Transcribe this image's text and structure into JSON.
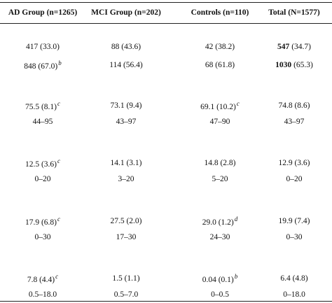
{
  "table": {
    "header": [
      "AD Group (n=1265)",
      "MCI Group (n=202)",
      "Controls (n=110)",
      "Total (N=1577)"
    ],
    "rows": [
      [
        {
          "text": "417 (33.0)"
        },
        {
          "text": "88 (43.6)"
        },
        {
          "text": "42 (38.2)"
        },
        {
          "bold": "547",
          "text": "(34.7)"
        }
      ],
      [
        {
          "text": "848 (67.0)",
          "sup": "b"
        },
        {
          "text": "114 (56.4)"
        },
        {
          "text": "68 (61.8)"
        },
        {
          "bold": "1030",
          "text": "(65.3)"
        }
      ],
      [
        {
          "text": "75.5 (8.1)",
          "sup": "c"
        },
        {
          "text": "73.1 (9.4)"
        },
        {
          "text": "69.1 (10.2)",
          "sup": "c"
        },
        {
          "text": "74.8 (8.6)"
        }
      ],
      [
        {
          "text": "44–95"
        },
        {
          "text": "43–97"
        },
        {
          "text": "47–90"
        },
        {
          "text": "43–97"
        }
      ],
      [
        {
          "text": "12.5 (3.6)",
          "sup": "c"
        },
        {
          "text": "14.1 (3.1)"
        },
        {
          "text": "14.8 (2.8)"
        },
        {
          "text": "12.9 (3.6)"
        }
      ],
      [
        {
          "text": "0–20"
        },
        {
          "text": "3–20"
        },
        {
          "text": "5–20"
        },
        {
          "text": "0–20"
        }
      ],
      [
        {
          "text": "17.9 (6.8)",
          "sup": "c"
        },
        {
          "text": "27.5 (2.0)"
        },
        {
          "text": "29.0 (1.2)",
          "sup": "d"
        },
        {
          "text": "19.9 (7.4)"
        }
      ],
      [
        {
          "text": "0–30"
        },
        {
          "text": "17–30"
        },
        {
          "text": "24–30"
        },
        {
          "text": "0–30"
        }
      ],
      [
        {
          "text": "7.8 (4.4)",
          "sup": "c"
        },
        {
          "text": "1.5 (1.1)"
        },
        {
          "text": "0.04 (0.1)",
          "sup": "b"
        },
        {
          "text": "6.4 (4.8)"
        }
      ],
      [
        {
          "text": "0.5–18.0"
        },
        {
          "text": "0.5–7.0"
        },
        {
          "text": "0–0.5"
        },
        {
          "text": "0–18.0"
        }
      ]
    ]
  }
}
